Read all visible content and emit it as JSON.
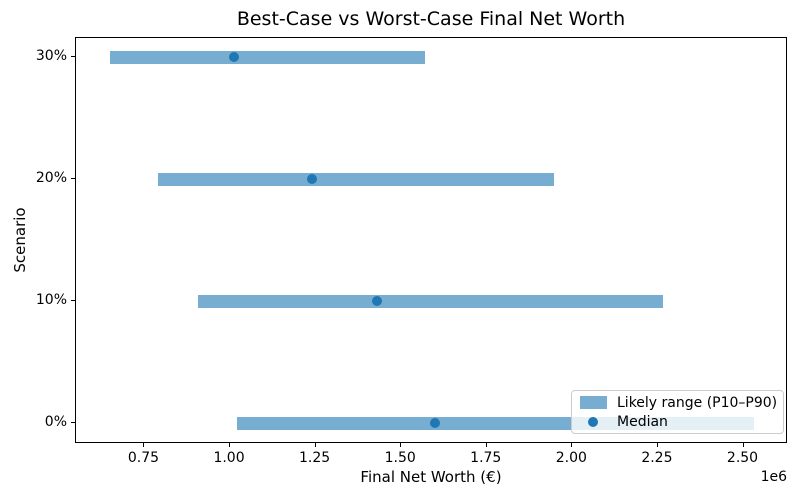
{
  "figure": {
    "title": "Best-Case vs Worst-Case Final Net Worth",
    "xlabel": "Final Net Worth (€)",
    "ylabel": "Scenario",
    "offset_text": "1e6"
  },
  "legend": {
    "position": "lower right",
    "items": [
      {
        "label": "Likely range (P10–P90)",
        "marker": "bar-swatch-icon"
      },
      {
        "label": "Median",
        "marker": "dot-icon"
      }
    ]
  },
  "colors": {
    "range_bar": "#78ADD2",
    "median_dot": "#1F77B4",
    "spine": "#000000",
    "legend_border": "#CCCCCC"
  },
  "chart_data": {
    "type": "bar",
    "orientation": "horizontal",
    "title": "Best-Case vs Worst-Case Final Net Worth",
    "xlabel": "Final Net Worth (€)",
    "ylabel": "Scenario",
    "categories_bottom_to_top": [
      "0%",
      "10%",
      "20%",
      "30%"
    ],
    "series": [
      {
        "name": "Likely range (P10–P90)",
        "type": "range-bar",
        "p10": [
          1020000,
          905000,
          790000,
          648000
        ],
        "p90": [
          2530000,
          2265000,
          1945000,
          1570000
        ]
      },
      {
        "name": "Median",
        "type": "scatter",
        "values": [
          1600000,
          1430000,
          1240000,
          1012000
        ]
      }
    ],
    "xlim": [
      550000,
      2630000
    ],
    "xticks": [
      750000,
      1000000,
      1250000,
      1500000,
      1750000,
      2000000,
      2250000,
      2500000
    ],
    "xtick_labels": [
      "0.75",
      "1.00",
      "1.25",
      "1.50",
      "1.75",
      "2.00",
      "2.25",
      "2.50"
    ],
    "x_offset_label": "1e6",
    "ytick_labels_bottom_to_top": [
      "0%",
      "10%",
      "20%",
      "30%"
    ],
    "grid": false,
    "legend_position": "lower right"
  }
}
